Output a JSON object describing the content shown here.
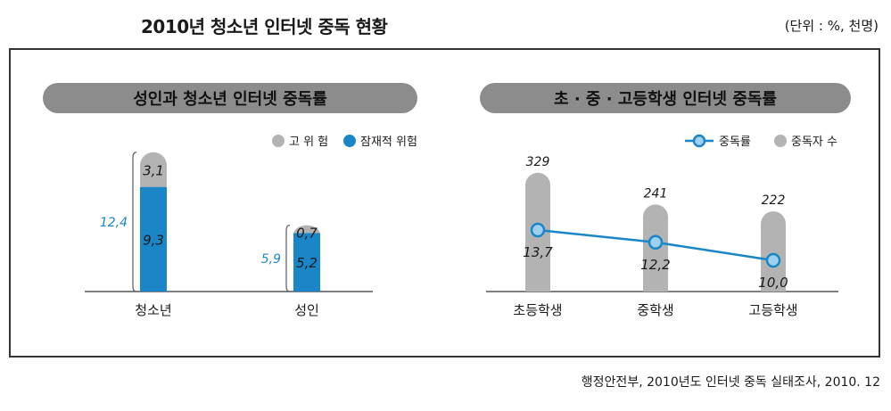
{
  "title": "2010년 청소년 인터넷 중독 현황",
  "unit_note": "(단위 : %, 천명)",
  "source": "행정안전부, 2010년도 인터넷 중독 실태조사, 2010. 12",
  "colors": {
    "high_risk": "#b3b3b3",
    "potential_risk": "#1a86c8",
    "addiction_line": "#1a86c8",
    "count_bar": "#b3b3b3",
    "panel_header": "#8c8c8c"
  },
  "chart_data": [
    {
      "type": "bar",
      "panel_title": "성인과 청소년 인터넷 중독률",
      "legend": [
        "고 위 험",
        "잠재적 위험"
      ],
      "categories": [
        "청소년",
        "성인"
      ],
      "series": [
        {
          "name": "잠재적 위험",
          "values": [
            9.3,
            5.2
          ],
          "labels": [
            "9,3",
            "5,2"
          ]
        },
        {
          "name": "고 위 험",
          "values": [
            3.1,
            0.7
          ],
          "labels": [
            "3,1",
            "0,7"
          ]
        }
      ],
      "totals": [
        12.4,
        5.9
      ],
      "total_labels": [
        "12,4",
        "5,9"
      ],
      "stacked": true
    },
    {
      "type": "line",
      "panel_title": "초 · 중 · 고등학생 인터넷 중독률",
      "legend": [
        "중독률",
        "중독자 수"
      ],
      "categories": [
        "초등학생",
        "중학생",
        "고등학생"
      ],
      "series": [
        {
          "name": "중독률",
          "values": [
            13.7,
            12.2,
            10.0
          ],
          "labels": [
            "13,7",
            "12,2",
            "10,0"
          ]
        },
        {
          "name": "중독자 수",
          "values": [
            329,
            241,
            222
          ],
          "labels": [
            "329",
            "241",
            "222"
          ]
        }
      ]
    }
  ]
}
